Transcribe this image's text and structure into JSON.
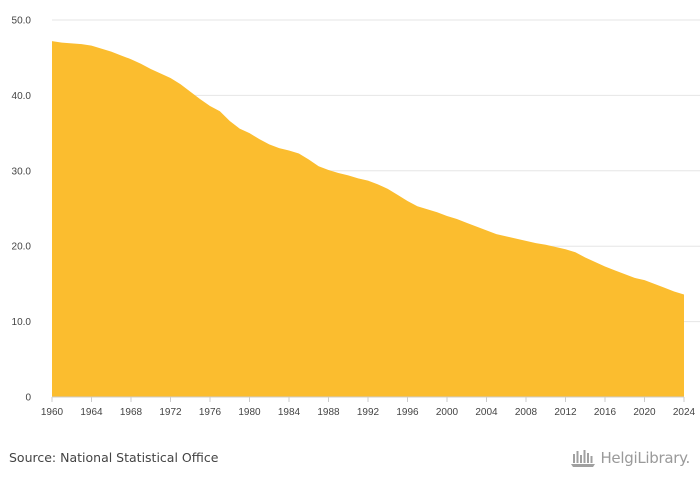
{
  "chart_data": {
    "type": "area",
    "color": "#fbbd2f",
    "grid": true,
    "ylim": [
      0,
      50
    ],
    "yticks": [
      {
        "value": 0,
        "label": "0"
      },
      {
        "value": 10,
        "label": "10.0"
      },
      {
        "value": 20,
        "label": "20.0"
      },
      {
        "value": 30,
        "label": "30.0"
      },
      {
        "value": 40,
        "label": "40.0"
      },
      {
        "value": 50,
        "label": "50.0"
      }
    ],
    "xlim": [
      1960,
      2024
    ],
    "xticks": [
      "1960",
      "1964",
      "1968",
      "1972",
      "1976",
      "1980",
      "1984",
      "1988",
      "1992",
      "1996",
      "2000",
      "2004",
      "2008",
      "2012",
      "2016",
      "2020",
      "2024"
    ],
    "x": [
      1960,
      1961,
      1962,
      1963,
      1964,
      1965,
      1966,
      1967,
      1968,
      1969,
      1970,
      1971,
      1972,
      1973,
      1974,
      1975,
      1976,
      1977,
      1978,
      1979,
      1980,
      1981,
      1982,
      1983,
      1984,
      1985,
      1986,
      1987,
      1988,
      1989,
      1990,
      1991,
      1992,
      1993,
      1994,
      1995,
      1996,
      1997,
      1998,
      1999,
      2000,
      2001,
      2002,
      2003,
      2004,
      2005,
      2006,
      2007,
      2008,
      2009,
      2010,
      2011,
      2012,
      2013,
      2014,
      2015,
      2016,
      2017,
      2018,
      2019,
      2020,
      2021,
      2022,
      2023,
      2024
    ],
    "values": [
      47.2,
      47.0,
      46.9,
      46.8,
      46.6,
      46.2,
      45.8,
      45.3,
      44.8,
      44.2,
      43.5,
      42.9,
      42.3,
      41.5,
      40.5,
      39.5,
      38.6,
      37.9,
      36.6,
      35.6,
      35.0,
      34.2,
      33.5,
      33.0,
      32.7,
      32.3,
      31.5,
      30.6,
      30.1,
      29.7,
      29.4,
      29.0,
      28.7,
      28.2,
      27.6,
      26.8,
      26.0,
      25.3,
      24.9,
      24.5,
      24.0,
      23.6,
      23.1,
      22.6,
      22.1,
      21.6,
      21.3,
      21.0,
      20.7,
      20.4,
      20.2,
      19.9,
      19.6,
      19.2,
      18.5,
      17.9,
      17.3,
      16.8,
      16.3,
      15.8,
      15.5,
      15.0,
      14.5,
      14.0,
      13.6
    ]
  },
  "footer": {
    "source": "Source: National Statistical Office",
    "brand": "HelgiLibrary."
  },
  "icons": {
    "brand_logo": "helgi-library-logo-icon"
  }
}
